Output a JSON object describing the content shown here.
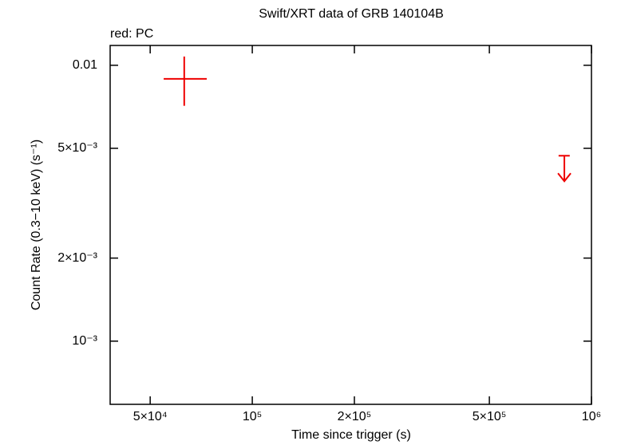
{
  "chart_data": {
    "type": "scatter",
    "title": "Swift/XRT data of GRB 140104B",
    "x_label": "Time since trigger (s)",
    "y_label": "Count Rate (0.3−10 keV) (s⁻¹)",
    "log_x": true,
    "log_y": true,
    "xlim": [
      38100,
      1000000
    ],
    "ylim": [
      0.00059,
      0.0118
    ],
    "xticks": [
      {
        "value": 50000,
        "label": "5×10⁴"
      },
      {
        "value": 100000,
        "label": "10⁵"
      },
      {
        "value": 200000,
        "label": "2×10⁵"
      },
      {
        "value": 500000,
        "label": "5×10⁵"
      },
      {
        "value": 1000000,
        "label": "10⁶"
      }
    ],
    "yticks": [
      {
        "value": 0.001,
        "label": "10⁻³"
      },
      {
        "value": 0.002,
        "label": "2×10⁻³"
      },
      {
        "value": 0.005,
        "label": "5×10⁻³"
      },
      0.01
    ],
    "series": [
      {
        "name": "red: PC",
        "color": "#ee0000",
        "x": [
          63000,
          832000
        ],
        "x_low": [
          54800,
          800000
        ],
        "x_high": [
          73400,
          863000
        ],
        "values": [
          0.00893,
          0.0047
        ],
        "y_low": [
          0.00713,
          null
        ],
        "y_high": [
          0.01076,
          null
        ],
        "upper_limit": [
          false,
          true
        ]
      }
    ]
  }
}
